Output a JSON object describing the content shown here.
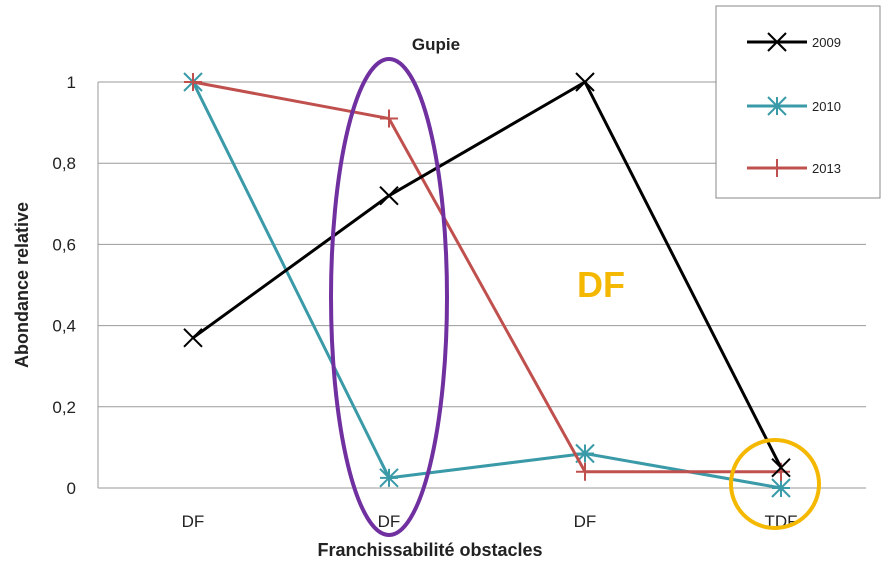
{
  "chart_data": {
    "type": "line",
    "title": "Gupie",
    "xlabel": "Franchissabilité obstacles",
    "ylabel": "Abondance relative",
    "categories": [
      "DF",
      "DF",
      "DF",
      "TDF"
    ],
    "ylim": [
      0,
      1
    ],
    "yticks": [
      "0",
      "0,2",
      "0,4",
      "0,6",
      "0,8",
      "1"
    ],
    "grid": true,
    "legend_position": "top-right",
    "series": [
      {
        "name": "2009",
        "color": "#000000",
        "marker": "x",
        "values": [
          0.37,
          0.72,
          1.0,
          0.05
        ]
      },
      {
        "name": "2010",
        "color": "#3a9aa8",
        "marker": "star",
        "values": [
          1.0,
          0.025,
          0.085,
          0.0
        ]
      },
      {
        "name": "2013",
        "color": "#c0504d",
        "marker": "plus",
        "values": [
          1.0,
          0.91,
          0.04,
          0.04
        ]
      }
    ],
    "annotations": [
      {
        "text": "DF",
        "color": "#f5b800"
      }
    ],
    "highlights": [
      {
        "shape": "ellipse",
        "color": "#7030a0",
        "target_category_index": 1
      },
      {
        "shape": "circle",
        "color": "#f5b800",
        "target_category_index": 3
      }
    ]
  }
}
